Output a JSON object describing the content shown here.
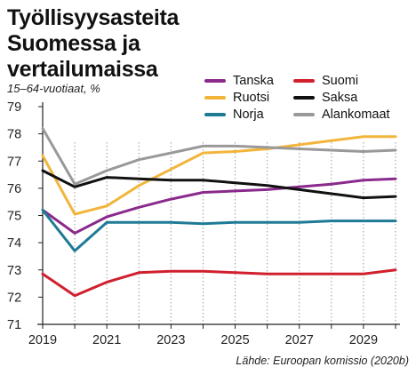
{
  "chart_data": {
    "type": "line",
    "title": "Työllisyysasteita Suomessa ja vertailumaissa",
    "subtitle": "15–64-vuotiaat, %",
    "source": "Lähde: Euroopan komissio (2020b)",
    "xlabel": "",
    "ylabel": "",
    "xlim": [
      2019,
      2030
    ],
    "ylim": [
      71,
      79
    ],
    "x_ticks": [
      2019,
      2021,
      2023,
      2025,
      2027,
      2029
    ],
    "x_tick_labels": [
      "2019",
      "2021",
      "2023",
      "2025",
      "2027",
      "2029"
    ],
    "y_ticks": [
      71,
      72,
      73,
      74,
      75,
      76,
      77,
      78,
      79
    ],
    "y_tick_labels": [
      "71",
      "72",
      "73",
      "74",
      "75",
      "76",
      "77",
      "78",
      "79"
    ],
    "grid": "vertical dotted",
    "legend_placement": "top-right",
    "x": [
      2019,
      2020,
      2021,
      2022,
      2023,
      2024,
      2025,
      2026,
      2027,
      2028,
      2029,
      2030
    ],
    "series": [
      {
        "name": "Tanska",
        "color": "#8a2a8c",
        "values": [
          75.2,
          74.35,
          74.95,
          75.3,
          75.6,
          75.85,
          75.9,
          75.95,
          76.05,
          76.15,
          76.3,
          76.35
        ]
      },
      {
        "name": "Ruotsi",
        "color": "#f2b53c",
        "values": [
          77.2,
          75.05,
          75.35,
          76.1,
          76.7,
          77.3,
          77.35,
          77.45,
          77.6,
          77.75,
          77.9,
          77.9
        ]
      },
      {
        "name": "Norja",
        "color": "#1f7a96",
        "values": [
          75.2,
          73.7,
          74.75,
          74.75,
          74.75,
          74.7,
          74.75,
          74.75,
          74.75,
          74.8,
          74.8,
          74.8
        ]
      },
      {
        "name": "Suomi",
        "color": "#d0202d",
        "values": [
          72.85,
          72.05,
          72.55,
          72.9,
          72.95,
          72.95,
          72.9,
          72.85,
          72.85,
          72.85,
          72.85,
          73.0
        ]
      },
      {
        "name": "Saksa",
        "color": "#111111",
        "values": [
          76.65,
          76.05,
          76.4,
          76.35,
          76.3,
          76.3,
          76.2,
          76.1,
          75.95,
          75.8,
          75.65,
          75.7
        ]
      },
      {
        "name": "Alankomaat",
        "color": "#999999",
        "values": [
          78.2,
          76.15,
          76.65,
          77.05,
          77.3,
          77.55,
          77.55,
          77.5,
          77.45,
          77.4,
          77.35,
          77.4
        ]
      }
    ]
  }
}
